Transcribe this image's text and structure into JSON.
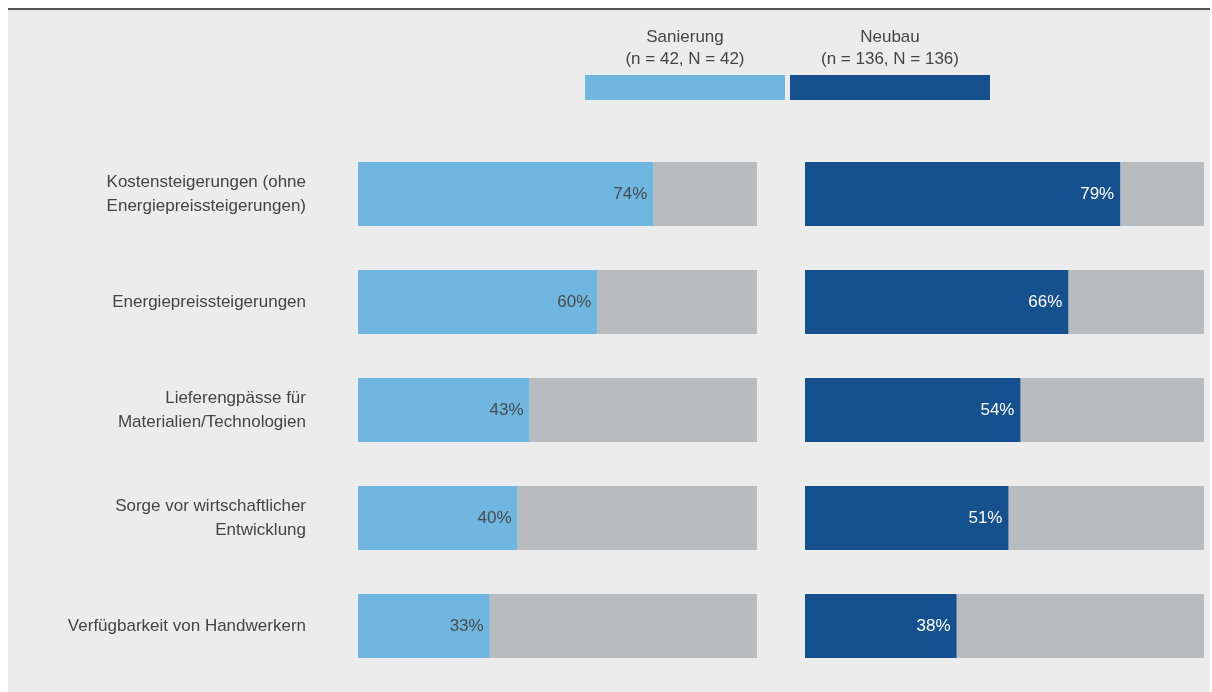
{
  "chart_data": [
    {
      "type": "bar",
      "orientation": "horizontal",
      "stacked": true,
      "legend": "top",
      "tick_labels": "y",
      "xlim": [
        0,
        100
      ],
      "categories": [
        "Kostensteigerungen (ohne Energiepreissteigerungen)",
        "Energiepreissteigerungen",
        "Lieferengpässe für Materialien/Technologien",
        "Sorge vor wirtschaftlicher Entwicklung",
        "Verfügbarkeit von Handwerkern"
      ],
      "series": [
        {
          "name": "Sanierung (n = 42, N = 42)",
          "color": "#6fb6e1",
          "values": [
            74,
            60,
            43,
            40,
            33
          ],
          "value_labels": [
            "74%",
            "60%",
            "43%",
            "40%",
            "33%"
          ]
        },
        {
          "color": "#b8bcbf",
          "values": [
            26,
            40,
            57,
            60,
            67
          ]
        }
      ]
    },
    {
      "type": "bar",
      "orientation": "horizontal",
      "stacked": true,
      "legend": "top",
      "tick_labels": false,
      "xlim": [
        0,
        100
      ],
      "categories": [
        null,
        null,
        null,
        null,
        null
      ],
      "series": [
        {
          "name": "Neubau (n = 136, N = 136)",
          "color": "#15508f",
          "values": [
            79,
            66,
            54,
            51,
            38
          ],
          "value_labels": [
            "79%",
            "66%",
            "54%",
            "51%",
            "38%"
          ]
        },
        {
          "color": "#b8bcbf",
          "values": [
            21,
            34,
            46,
            49,
            62
          ]
        }
      ]
    }
  ]
}
